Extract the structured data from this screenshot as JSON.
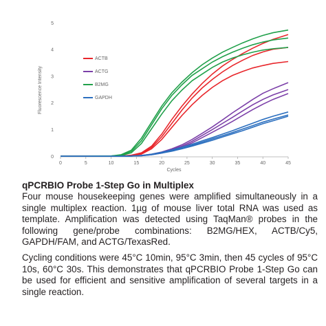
{
  "chart_data": {
    "type": "line",
    "y_label": "Fluorescence Intensity",
    "x_label": "Cycles",
    "x": [
      0,
      5,
      10,
      12,
      14,
      16,
      18,
      20,
      22,
      24,
      26,
      28,
      30,
      32,
      34,
      36,
      38,
      40,
      42,
      45
    ],
    "xlim": [
      0,
      45
    ],
    "xticks": [
      0,
      5,
      10,
      15,
      20,
      25,
      30,
      35,
      40,
      45
    ],
    "ylim": [
      0,
      5
    ],
    "yticks": [
      0,
      1,
      2,
      3,
      4,
      5
    ],
    "grid": false,
    "legend": "upper left",
    "series": [
      {
        "name": "ACTB",
        "color": "#e8262b",
        "values": [
          [
            0.02,
            0.02,
            0.02,
            0.03,
            0.06,
            0.15,
            0.4,
            0.85,
            1.4,
            1.9,
            2.35,
            2.75,
            3.1,
            3.4,
            3.65,
            3.87,
            4.07,
            4.25,
            4.4,
            4.58
          ],
          [
            0.02,
            0.02,
            0.02,
            0.03,
            0.05,
            0.12,
            0.35,
            0.75,
            1.25,
            1.75,
            2.2,
            2.58,
            2.9,
            3.18,
            3.42,
            3.62,
            3.8,
            3.93,
            4.03,
            4.1
          ],
          [
            0.02,
            0.02,
            0.02,
            0.03,
            0.05,
            0.1,
            0.3,
            0.65,
            1.1,
            1.55,
            1.95,
            2.3,
            2.6,
            2.85,
            3.05,
            3.2,
            3.33,
            3.42,
            3.5,
            3.57
          ]
        ]
      },
      {
        "name": "ACTG",
        "color": "#7b3fa8",
        "values": [
          [
            0.02,
            0.02,
            0.02,
            0.02,
            0.03,
            0.05,
            0.1,
            0.18,
            0.3,
            0.45,
            0.65,
            0.88,
            1.12,
            1.38,
            1.65,
            1.9,
            2.15,
            2.38,
            2.55,
            2.78
          ],
          [
            0.02,
            0.02,
            0.02,
            0.02,
            0.03,
            0.05,
            0.09,
            0.16,
            0.27,
            0.4,
            0.58,
            0.8,
            1.02,
            1.25,
            1.48,
            1.72,
            1.95,
            2.15,
            2.32,
            2.52
          ],
          [
            0.02,
            0.02,
            0.02,
            0.02,
            0.03,
            0.04,
            0.08,
            0.14,
            0.24,
            0.36,
            0.52,
            0.72,
            0.92,
            1.12,
            1.33,
            1.55,
            1.77,
            1.97,
            2.15,
            2.37
          ]
        ]
      },
      {
        "name": "B2MG",
        "color": "#20a04a",
        "values": [
          [
            0.02,
            0.02,
            0.03,
            0.08,
            0.25,
            0.7,
            1.3,
            1.9,
            2.4,
            2.8,
            3.15,
            3.45,
            3.7,
            3.92,
            4.1,
            4.27,
            4.42,
            4.55,
            4.65,
            4.75
          ],
          [
            0.02,
            0.02,
            0.03,
            0.06,
            0.2,
            0.6,
            1.2,
            1.8,
            2.3,
            2.7,
            3.05,
            3.3,
            3.55,
            3.75,
            3.92,
            4.07,
            4.2,
            4.3,
            4.38,
            4.45
          ],
          [
            0.02,
            0.02,
            0.03,
            0.05,
            0.15,
            0.5,
            1.05,
            1.6,
            2.1,
            2.5,
            2.85,
            3.1,
            3.35,
            3.55,
            3.7,
            3.82,
            3.92,
            4.0,
            4.05,
            4.1
          ]
        ]
      },
      {
        "name": "GAPDH",
        "color": "#2b6fbf",
        "values": [
          [
            0.02,
            0.02,
            0.02,
            0.02,
            0.03,
            0.05,
            0.1,
            0.17,
            0.26,
            0.36,
            0.47,
            0.6,
            0.72,
            0.85,
            0.98,
            1.12,
            1.26,
            1.4,
            1.52,
            1.68
          ],
          [
            0.02,
            0.02,
            0.02,
            0.02,
            0.03,
            0.05,
            0.09,
            0.15,
            0.23,
            0.32,
            0.43,
            0.55,
            0.67,
            0.79,
            0.91,
            1.04,
            1.17,
            1.3,
            1.41,
            1.57
          ],
          [
            0.02,
            0.02,
            0.02,
            0.02,
            0.03,
            0.04,
            0.08,
            0.14,
            0.21,
            0.3,
            0.4,
            0.51,
            0.62,
            0.74,
            0.86,
            0.98,
            1.11,
            1.24,
            1.35,
            1.52
          ]
        ]
      }
    ]
  },
  "caption": {
    "title": "qPCRBIO Probe 1-Step Go in Multiplex",
    "paragraphs": [
      "Four mouse housekeeping genes were amplified simultaneously in a single multiplex reaction. 1µg of mouse liver total RNA was used as template. Amplification was detected using TaqMan® probes in the following gene/probe combinations: B2MG/HEX, ACTB/Cy5, GAPDH/FAM, and ACTG/TexasRed.",
      "Cycling conditions were 45°C 10min, 95°C 3min, then 45 cycles of 95°C 10s, 60°C 30s. This demonstrates that qPCRBIO Probe 1-Step Go can be used for efficient and sensitive amplification of several targets in a single reaction."
    ]
  }
}
